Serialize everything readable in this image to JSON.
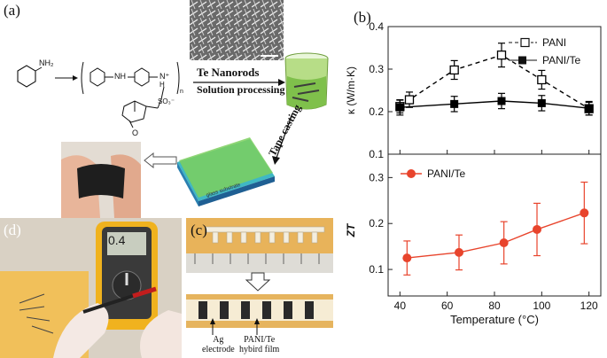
{
  "panels": {
    "a": {
      "letter": "(a)",
      "nh2": "NH₂",
      "nh": "NH",
      "nplus": "N⁺",
      "h": "H",
      "so3": "SO₃⁻",
      "carbonyl_o": "O",
      "n_sub": "n",
      "te_nanorods": "Te Nanorods",
      "solution_processing": "Solution processing",
      "tape_casting": "Tape casting",
      "substrate_label": "glass substrate"
    },
    "b": {
      "letter": "(b)"
    },
    "c": {
      "letter": "(c)",
      "ag_electrode": [
        "Ag",
        "electrode"
      ],
      "film_label": [
        "PANI/Te",
        "hybird film"
      ]
    },
    "d": {
      "letter": "(d)",
      "meter_reading": "0.4"
    }
  },
  "chart_data": [
    {
      "type": "line",
      "xlabel": "",
      "ylabel": "κ (W/m·K)",
      "ylim": [
        0.1,
        0.4
      ],
      "yticks": [
        "0.1",
        "0.2",
        "0.3",
        "0.4"
      ],
      "xlim": [
        35,
        125
      ],
      "legend_position": "top-right",
      "series": [
        {
          "name": "PANI",
          "style": "dashed-open-square",
          "color": "#000000",
          "x": [
            40,
            44,
            63,
            83,
            100,
            120
          ],
          "y": [
            0.212,
            0.228,
            0.298,
            0.333,
            0.275,
            0.207
          ],
          "err": [
            0.015,
            0.018,
            0.022,
            0.028,
            0.022,
            0.015
          ]
        },
        {
          "name": "PANI/Te",
          "style": "solid-filled-square",
          "color": "#000000",
          "x": [
            40,
            63,
            83,
            100,
            120
          ],
          "y": [
            0.21,
            0.218,
            0.225,
            0.22,
            0.208
          ],
          "err": [
            0.018,
            0.018,
            0.018,
            0.018,
            0.016
          ]
        }
      ]
    },
    {
      "type": "line",
      "xlabel": "Temperature (°C)",
      "ylabel": "ZT",
      "ylim": [
        0.05,
        0.32
      ],
      "yticks": [
        "0.1",
        "0.2",
        "0.3"
      ],
      "xlim": [
        35,
        125
      ],
      "xticks": [
        "40",
        "60",
        "80",
        "100",
        "120"
      ],
      "legend_position": "top-left",
      "series": [
        {
          "name": "PANI/Te",
          "style": "solid-filled-circle",
          "color": "#e8442c",
          "x": [
            43,
            65,
            84,
            98,
            118
          ],
          "y": [
            0.125,
            0.137,
            0.158,
            0.187,
            0.223
          ],
          "err": [
            0.037,
            0.038,
            0.046,
            0.057,
            0.067
          ]
        }
      ]
    }
  ]
}
